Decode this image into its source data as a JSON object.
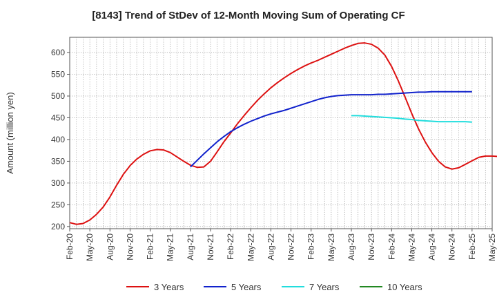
{
  "chart_data": {
    "type": "line",
    "title": "[8143]  Trend of StDev of 12-Month Moving Sum of Operating CF",
    "ylabel": "Amount (million yen)",
    "xlabel": "",
    "ylim": [
      195,
      635
    ],
    "yticks": [
      200,
      250,
      300,
      350,
      400,
      450,
      500,
      550,
      600
    ],
    "x_tick_labels": [
      "Feb-20",
      "May-20",
      "Aug-20",
      "Nov-20",
      "Feb-21",
      "May-21",
      "Aug-21",
      "Nov-21",
      "Feb-22",
      "May-22",
      "Aug-22",
      "Nov-22",
      "Feb-23",
      "May-23",
      "Aug-23",
      "Nov-23",
      "Feb-24",
      "May-24",
      "Aug-24",
      "Nov-24",
      "Feb-25",
      "May-25"
    ],
    "grid": true,
    "legend_position": "bottom",
    "series": [
      {
        "name": "3 Years",
        "color": "#dd1111",
        "start_month_index": 0,
        "values": [
          209,
          205,
          207,
          215,
          228,
          245,
          268,
          295,
          320,
          340,
          355,
          366,
          374,
          377,
          376,
          370,
          360,
          350,
          341,
          336,
          337,
          350,
          372,
          395,
          415,
          436,
          455,
          473,
          490,
          505,
          519,
          531,
          542,
          552,
          561,
          569,
          576,
          582,
          589,
          596,
          603,
          610,
          616,
          621,
          622,
          619,
          610,
          594,
          568,
          535,
          498,
          460,
          425,
          395,
          370,
          350,
          337,
          332,
          335,
          343,
          351,
          359,
          362,
          362,
          361,
          360,
          358,
          355,
          352
        ]
      },
      {
        "name": "5 Years",
        "color": "#1122cc",
        "start_month_index": 18,
        "values": [
          337,
          352,
          367,
          381,
          395,
          407,
          418,
          427,
          435,
          442,
          448,
          454,
          459,
          463,
          467,
          472,
          477,
          482,
          487,
          492,
          496,
          499,
          501,
          502,
          503,
          503,
          503,
          503,
          504,
          504,
          505,
          506,
          507,
          508,
          509,
          509,
          510,
          510,
          510,
          510,
          510,
          510,
          510
        ]
      },
      {
        "name": "7 Years",
        "color": "#22dddd",
        "start_month_index": 42,
        "values": [
          455,
          455,
          454,
          453,
          452,
          451,
          450,
          449,
          447,
          446,
          444,
          443,
          442,
          441,
          441,
          441,
          441,
          441,
          440
        ]
      },
      {
        "name": "10 Years",
        "color": "#228822",
        "start_month_index": 0,
        "values": []
      }
    ]
  }
}
